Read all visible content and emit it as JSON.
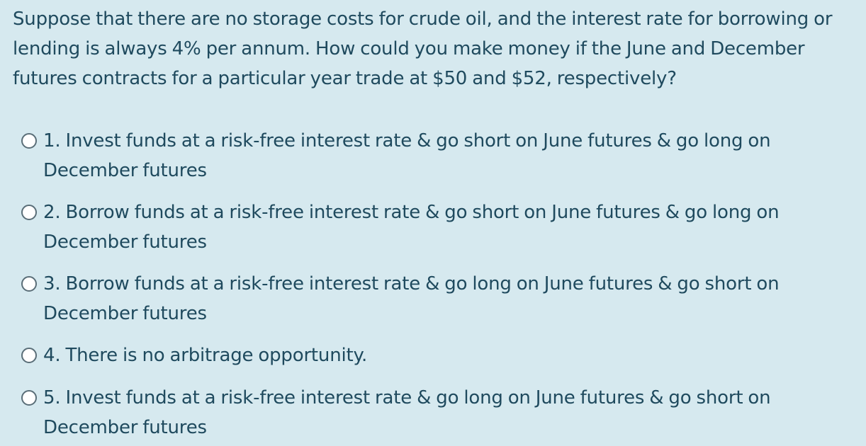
{
  "question": {
    "text": "Suppose that there are no storage costs for crude oil, and the interest rate for borrowing or lending is always 4% per annum. How could you make money if the June and December futures contracts for a particular year trade at $50 and $52, respectively?"
  },
  "options": [
    {
      "label": "1. Invest funds at a risk-free interest rate & go short on June futures & go long on December futures",
      "selected": false
    },
    {
      "label": "2. Borrow funds at a risk-free interest rate & go short on June futures & go long on December futures",
      "selected": false
    },
    {
      "label": "3. Borrow funds at a risk-free interest rate & go long on June futures & go short on December futures",
      "selected": false
    },
    {
      "label": "4. There is no arbitrage opportunity.",
      "selected": false
    },
    {
      "label": "5. Invest funds at a risk-free interest rate & go long on June futures & go short on December futures",
      "selected": false
    }
  ],
  "colors": {
    "background": "#d6e9ef",
    "text": "#1f4a5e",
    "radio_border": "#5a6e78",
    "radio_fill": "#ffffff"
  }
}
